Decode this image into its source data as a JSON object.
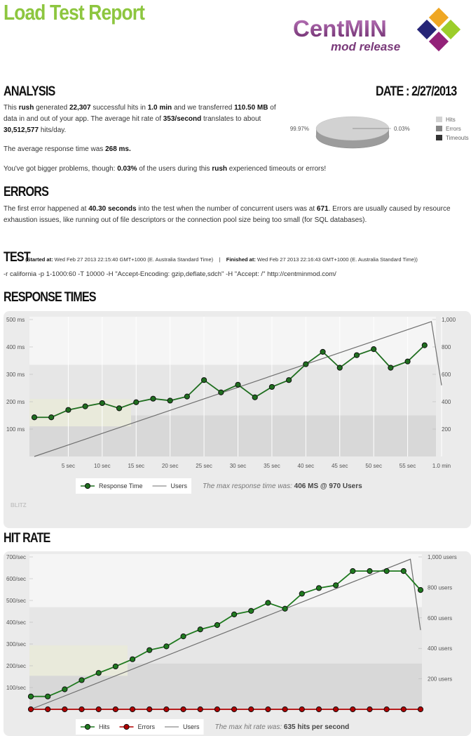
{
  "header": {
    "title": "Load Test Report",
    "logo": "CentMIN",
    "logo_sub": "mod release"
  },
  "analysis": {
    "heading": "ANALYSIS",
    "date": "DATE : 2/27/2013",
    "paragraphs": [
      [
        {
          "text": "This "
        },
        {
          "text": "rush",
          "bold": true
        },
        {
          "text": " generated "
        },
        {
          "text": "22,307",
          "bold": true
        },
        {
          "text": " successful hits in "
        },
        {
          "text": "1.0 min",
          "bold": true
        },
        {
          "text": " and we transferred "
        },
        {
          "text": "110.50 MB",
          "bold": true
        },
        {
          "text": " of data in and out of your app. The average hit rate of "
        },
        {
          "text": "353/second",
          "bold": true
        },
        {
          "text": " translates to about "
        },
        {
          "text": "30,512,577",
          "bold": true
        },
        {
          "text": " hits/day."
        }
      ],
      [
        {
          "text": "The average response time was "
        },
        {
          "text": "268 ms.",
          "bold": true
        }
      ],
      [
        {
          "text": "You've got bigger problems, though: "
        },
        {
          "text": "0.03%",
          "bold": true
        },
        {
          "text": " of the users during this "
        },
        {
          "text": "rush",
          "bold": true
        },
        {
          "text": " experienced timeouts or errors!"
        }
      ]
    ]
  },
  "pie": {
    "type": "pie",
    "categories": [
      "Hits",
      "Errors",
      "Timeouts"
    ],
    "values": [
      99.97,
      0.03,
      0
    ],
    "value_labels": [
      "99.97%",
      "0.03%",
      null
    ],
    "colors": [
      "#d2d2d2",
      "#858585",
      "#333333"
    ]
  },
  "errors": {
    "heading": "ERRORS",
    "paragraphs": [
      [
        {
          "text": "The first error happened at "
        },
        {
          "text": "40.30 seconds",
          "bold": true
        },
        {
          "text": " into the test when the number of concurrent users was at "
        },
        {
          "text": "671",
          "bold": true
        },
        {
          "text": ". Errors are usually caused by resource exhaustion issues, like running out of file descriptors or the connection pool size being too small (for SQL databases)."
        }
      ]
    ]
  },
  "test": {
    "heading": "TEST",
    "runs": [
      {
        "text": "("
      },
      {
        "text": "Started at:",
        "bold": true
      },
      {
        "text": " Wed Feb 27 2013 22:15:40 GMT+1000 (E. Australia Standard Time)    |    "
      },
      {
        "text": "Finished at:",
        "bold": true
      },
      {
        "text": " Wed Feb 27 2013 22:16:43 GMT+1000 (E. Australia Standard Time))"
      }
    ],
    "command": "-r california -p 1-1000:60 -T 10000 -H \"Accept-Encoding: gzip,deflate,sdch\" -H \"Accept: /\" http://centminmod.com/"
  },
  "charts": [
    {
      "type": "line",
      "title": "RESPONSE TIMES",
      "xlim": [
        0,
        60
      ],
      "xticks": [
        {
          "value": 5,
          "label": "5 sec"
        },
        {
          "value": 10,
          "label": "10 sec"
        },
        {
          "value": 15,
          "label": "15 sec"
        },
        {
          "value": 20,
          "label": "20 sec"
        },
        {
          "value": 25,
          "label": "25 sec"
        },
        {
          "value": 30,
          "label": "30 sec"
        },
        {
          "value": 35,
          "label": "35 sec"
        },
        {
          "value": 40,
          "label": "40 sec"
        },
        {
          "value": 45,
          "label": "45 sec"
        },
        {
          "value": 50,
          "label": "50 sec"
        },
        {
          "value": 55,
          "label": "55 sec"
        },
        {
          "value": 60,
          "label": "1.0 min"
        }
      ],
      "ylim": [
        0,
        500
      ],
      "yticks": [
        {
          "value": 100,
          "label": "100 ms"
        },
        {
          "value": 200,
          "label": "200 ms"
        },
        {
          "value": 300,
          "label": "300 ms"
        },
        {
          "value": 400,
          "label": "400 ms"
        },
        {
          "value": 500,
          "label": "500 ms"
        }
      ],
      "y2lim": [
        0,
        1000
      ],
      "y2ticks": [
        200,
        400,
        600,
        800,
        {
          "value": 1000,
          "label": "1,000"
        }
      ],
      "grid": true,
      "x": [
        0,
        2.5,
        5,
        7.5,
        10,
        12.5,
        15,
        17.5,
        20,
        22.5,
        25,
        27.5,
        30,
        32.5,
        35,
        37.5,
        40,
        42.5,
        45,
        47.5,
        50,
        52.5,
        55,
        57.5
      ],
      "series": [
        {
          "name": "Response Time",
          "color": "#1f6e1f",
          "markers": true,
          "values": [
            143,
            143,
            170,
            183,
            195,
            176,
            198,
            211,
            204,
            219,
            279,
            234,
            262,
            216,
            254,
            279,
            337,
            382,
            324,
            370,
            392,
            324,
            347,
            406
          ]
        },
        {
          "name": "Users",
          "color": "#6f6f6f",
          "axis": "y2",
          "x": [
            0,
            58.5,
            60
          ],
          "values": [
            0,
            985,
            520
          ]
        }
      ],
      "note": [
        {
          "text": "The max response time was: "
        },
        {
          "text": "406 MS @ 970 Users",
          "bold": true
        }
      ],
      "watermark": "BLITZ"
    },
    {
      "type": "line",
      "title": "HIT RATE",
      "xlim": [
        0,
        57.5
      ],
      "ylim": [
        0,
        700
      ],
      "yticks": [
        {
          "value": 100,
          "label": "100/sec"
        },
        {
          "value": 200,
          "label": "200/sec"
        },
        {
          "value": 300,
          "label": "300/sec"
        },
        {
          "value": 400,
          "label": "400/sec"
        },
        {
          "value": 500,
          "label": "500/sec"
        },
        {
          "value": 600,
          "label": "600/sec"
        },
        {
          "value": 700,
          "label": "700/sec"
        }
      ],
      "y2lim": [
        0,
        1000
      ],
      "y2ticks": [
        {
          "value": 200,
          "label": "200 users"
        },
        {
          "value": 400,
          "label": "400 users"
        },
        {
          "value": 600,
          "label": "600 users"
        },
        {
          "value": 800,
          "label": "800 users"
        },
        {
          "value": 1000,
          "label": "1,000 users"
        }
      ],
      "grid": true,
      "x": [
        0,
        2.5,
        5,
        7.5,
        10,
        12.5,
        15,
        17.5,
        20,
        22.5,
        25,
        27.5,
        30,
        32.5,
        35,
        37.5,
        40,
        42.5,
        45,
        47.5,
        50,
        52.5,
        55,
        57.5
      ],
      "series": [
        {
          "name": "Hits",
          "color": "#1f7a1f",
          "markers": true,
          "values": [
            59,
            59,
            92,
            134,
            167,
            197,
            230,
            272,
            289,
            335,
            367,
            387,
            436,
            452,
            489,
            462,
            531,
            557,
            570,
            635,
            635,
            635,
            635,
            548
          ]
        },
        {
          "name": "Errors",
          "color": "#b00000",
          "markers": true,
          "values": [
            0,
            0,
            0,
            0,
            0,
            0,
            0,
            0,
            0,
            0,
            0,
            0,
            0,
            0,
            0,
            0,
            0,
            0,
            0,
            0,
            0,
            0,
            0,
            0
          ]
        },
        {
          "name": "Users",
          "color": "#6f6f6f",
          "axis": "y2",
          "x": [
            0,
            56,
            57.5
          ],
          "values": [
            0,
            985,
            520
          ]
        }
      ],
      "note": [
        {
          "text": "The max hit rate was: "
        },
        {
          "text": "635 hits per second",
          "bold": true
        }
      ]
    }
  ]
}
